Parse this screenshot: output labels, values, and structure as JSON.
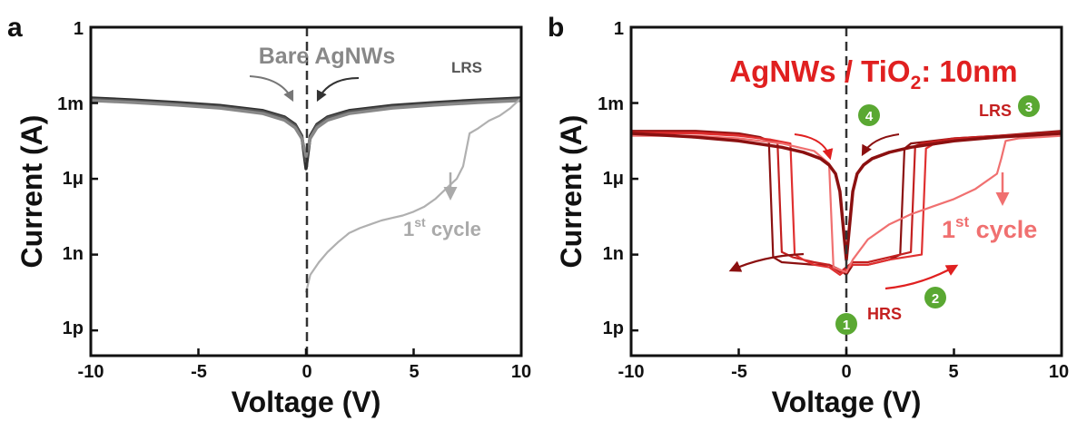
{
  "chart_data": [
    {
      "panel": "a",
      "type": "line",
      "title": "Bare AgNWs",
      "xlabel": "Voltage (V)",
      "ylabel": "Current (A)",
      "xlim": [
        -10,
        10
      ],
      "ylim_log10": [
        -13,
        0
      ],
      "xticks": [
        "-10",
        "-5",
        "0",
        "5",
        "10"
      ],
      "yticks": [
        "1",
        "1m",
        "1μ",
        "1n",
        "1p"
      ],
      "yticks_log10": [
        0,
        -3,
        -6,
        -9,
        -12
      ],
      "annotations": {
        "lrs": "LRS",
        "cycle_base": "1",
        "cycle_sup": "st",
        "cycle_rest": " cycle"
      },
      "colors": {
        "lrs_dark": "#2f2f2f",
        "lrs_mid": "#555555",
        "lrs_light": "#888888",
        "first_cycle": "#b0b0b0",
        "title": "#888888"
      },
      "series": [
        {
          "key": "lrs-sweep-1",
          "x": [
            -10,
            -8,
            -6,
            -4,
            -2,
            -1,
            -0.5,
            -0.2,
            0,
            0.2,
            0.5,
            1,
            2,
            4,
            6,
            8,
            10
          ],
          "y_log10": [
            -2.8,
            -2.88,
            -2.98,
            -3.1,
            -3.3,
            -3.55,
            -3.85,
            -4.3,
            -5.6,
            -4.3,
            -3.85,
            -3.55,
            -3.3,
            -3.1,
            -2.98,
            -2.88,
            -2.8
          ]
        },
        {
          "key": "lrs-sweep-2",
          "x": [
            -10,
            -8,
            -6,
            -4,
            -2,
            -1,
            -0.5,
            -0.2,
            0,
            0.2,
            0.5,
            1,
            2,
            4,
            6,
            8,
            10
          ],
          "y_log10": [
            -2.85,
            -2.93,
            -3.03,
            -3.15,
            -3.35,
            -3.6,
            -3.9,
            -4.35,
            -5.3,
            -4.35,
            -3.9,
            -3.6,
            -3.35,
            -3.15,
            -3.03,
            -2.93,
            -2.85
          ]
        },
        {
          "key": "lrs-sweep-3",
          "x": [
            -10,
            -8,
            -6,
            -4,
            -2,
            -1,
            -0.5,
            -0.2,
            0,
            0.2,
            0.5,
            1,
            2,
            4,
            6,
            8,
            10
          ],
          "y_log10": [
            -2.9,
            -2.98,
            -3.08,
            -3.2,
            -3.42,
            -3.68,
            -3.98,
            -4.4,
            -5.1,
            -4.4,
            -3.98,
            -3.68,
            -3.42,
            -3.2,
            -3.08,
            -2.98,
            -2.9
          ]
        },
        {
          "key": "first-cycle",
          "x": [
            0,
            0.2,
            0.6,
            1.0,
            1.5,
            2.0,
            2.5,
            3.0,
            3.5,
            4.0,
            4.5,
            5.0,
            5.5,
            6.0,
            6.5,
            7.0,
            7.3,
            7.6,
            8.0,
            8.5,
            9.0,
            9.5,
            10
          ],
          "y_log10": [
            -10.5,
            -9.8,
            -9.3,
            -8.9,
            -8.5,
            -8.15,
            -7.95,
            -7.8,
            -7.65,
            -7.55,
            -7.45,
            -7.3,
            -7.1,
            -6.8,
            -6.4,
            -6.0,
            -5.5,
            -4.2,
            -4.0,
            -3.7,
            -3.5,
            -3.2,
            -2.8
          ]
        }
      ]
    },
    {
      "panel": "b",
      "type": "line",
      "title_base": "AgNWs / TiO",
      "title_sub": "2",
      "title_rest": ": 10nm",
      "xlabel": "Voltage (V)",
      "ylabel": "Current (A)",
      "xlim": [
        -10,
        10
      ],
      "ylim_log10": [
        -13,
        0
      ],
      "xticks": [
        "-10",
        "-5",
        "0",
        "5",
        "10"
      ],
      "yticks": [
        "1",
        "1m",
        "1μ",
        "1n",
        "1p"
      ],
      "yticks_log10": [
        0,
        -3,
        -6,
        -9,
        -12
      ],
      "annotations": {
        "lrs": "LRS",
        "hrs": "HRS",
        "cycle_base": "1",
        "cycle_sup": "st",
        "cycle_rest": " cycle",
        "steps": [
          "1",
          "2",
          "3",
          "4"
        ]
      },
      "colors": {
        "title": "#e02020",
        "c1": "#8b1010",
        "c2": "#c42020",
        "c3": "#e03030",
        "c4": "#f07070",
        "badge": "#5aa832"
      },
      "series": [
        {
          "key": "cycle-1",
          "x": [
            -10,
            -7,
            -5,
            -4,
            -3.6,
            -3.4,
            -3.0,
            -1.5,
            -0.8,
            -0.3,
            0,
            0.3,
            1,
            2,
            2.5,
            2.7,
            3,
            5,
            7,
            10
          ],
          "y_log10": [
            -4.1,
            -4.1,
            -4.2,
            -4.35,
            -4.5,
            -9.1,
            -9.3,
            -9.4,
            -9.4,
            -9.6,
            -9.8,
            -9.4,
            -9.4,
            -9.2,
            -9.0,
            -4.8,
            -4.6,
            -4.4,
            -4.3,
            -4.1
          ]
        },
        {
          "key": "cycle-2",
          "x": [
            -10,
            -7,
            -5,
            -4,
            -3.2,
            -3.0,
            -2.5,
            -1.5,
            -0.8,
            -0.3,
            0,
            0.3,
            1,
            2,
            3.0,
            3.2,
            3.5,
            5,
            7,
            10
          ],
          "y_log10": [
            -4.15,
            -4.15,
            -4.25,
            -4.4,
            -4.55,
            -8.9,
            -9.1,
            -9.3,
            -9.4,
            -9.7,
            -9.5,
            -9.3,
            -9.3,
            -9.1,
            -8.9,
            -4.7,
            -4.6,
            -4.4,
            -4.3,
            -4.15
          ]
        },
        {
          "key": "cycle-3",
          "x": [
            -10,
            -7,
            -5,
            -3.5,
            -2.6,
            -2.4,
            -2.0,
            -1.5,
            -0.8,
            -0.3,
            0,
            0.3,
            1,
            2,
            3.5,
            3.7,
            4.0,
            5,
            7,
            10
          ],
          "y_log10": [
            -4.2,
            -4.2,
            -4.3,
            -4.45,
            -4.6,
            -9.0,
            -9.2,
            -9.4,
            -9.5,
            -9.8,
            -9.6,
            -9.4,
            -9.4,
            -9.2,
            -9.0,
            -4.8,
            -4.65,
            -4.45,
            -4.35,
            -4.2
          ]
        },
        {
          "key": "first-cycle",
          "x": [
            -10,
            -7,
            -5,
            -3,
            -1.5,
            -0.8,
            -0.6,
            -0.3,
            0,
            0.3,
            1,
            2,
            3,
            4,
            5,
            6,
            7,
            7.2,
            7.4,
            8,
            9,
            10
          ],
          "y_log10": [
            -4.3,
            -4.3,
            -4.4,
            -4.6,
            -4.9,
            -5.4,
            -9.5,
            -9.6,
            -9.7,
            -9.2,
            -8.4,
            -7.8,
            -7.4,
            -7.1,
            -6.8,
            -6.4,
            -5.8,
            -5.2,
            -4.5,
            -4.4,
            -4.35,
            -4.3
          ]
        },
        {
          "key": "lrs-branch",
          "x": [
            -10,
            -7,
            -5,
            -3,
            -2,
            -1.2,
            -0.8,
            -0.5,
            -0.3,
            0,
            0.3,
            0.5,
            0.8,
            1.2,
            2,
            3,
            5,
            7,
            10
          ],
          "y_log10": [
            -4.2,
            -4.35,
            -4.5,
            -4.75,
            -4.95,
            -5.2,
            -5.45,
            -5.8,
            -6.5,
            -9.2,
            -6.5,
            -5.8,
            -5.45,
            -5.2,
            -4.95,
            -4.75,
            -4.5,
            -4.35,
            -4.2
          ]
        }
      ]
    }
  ]
}
